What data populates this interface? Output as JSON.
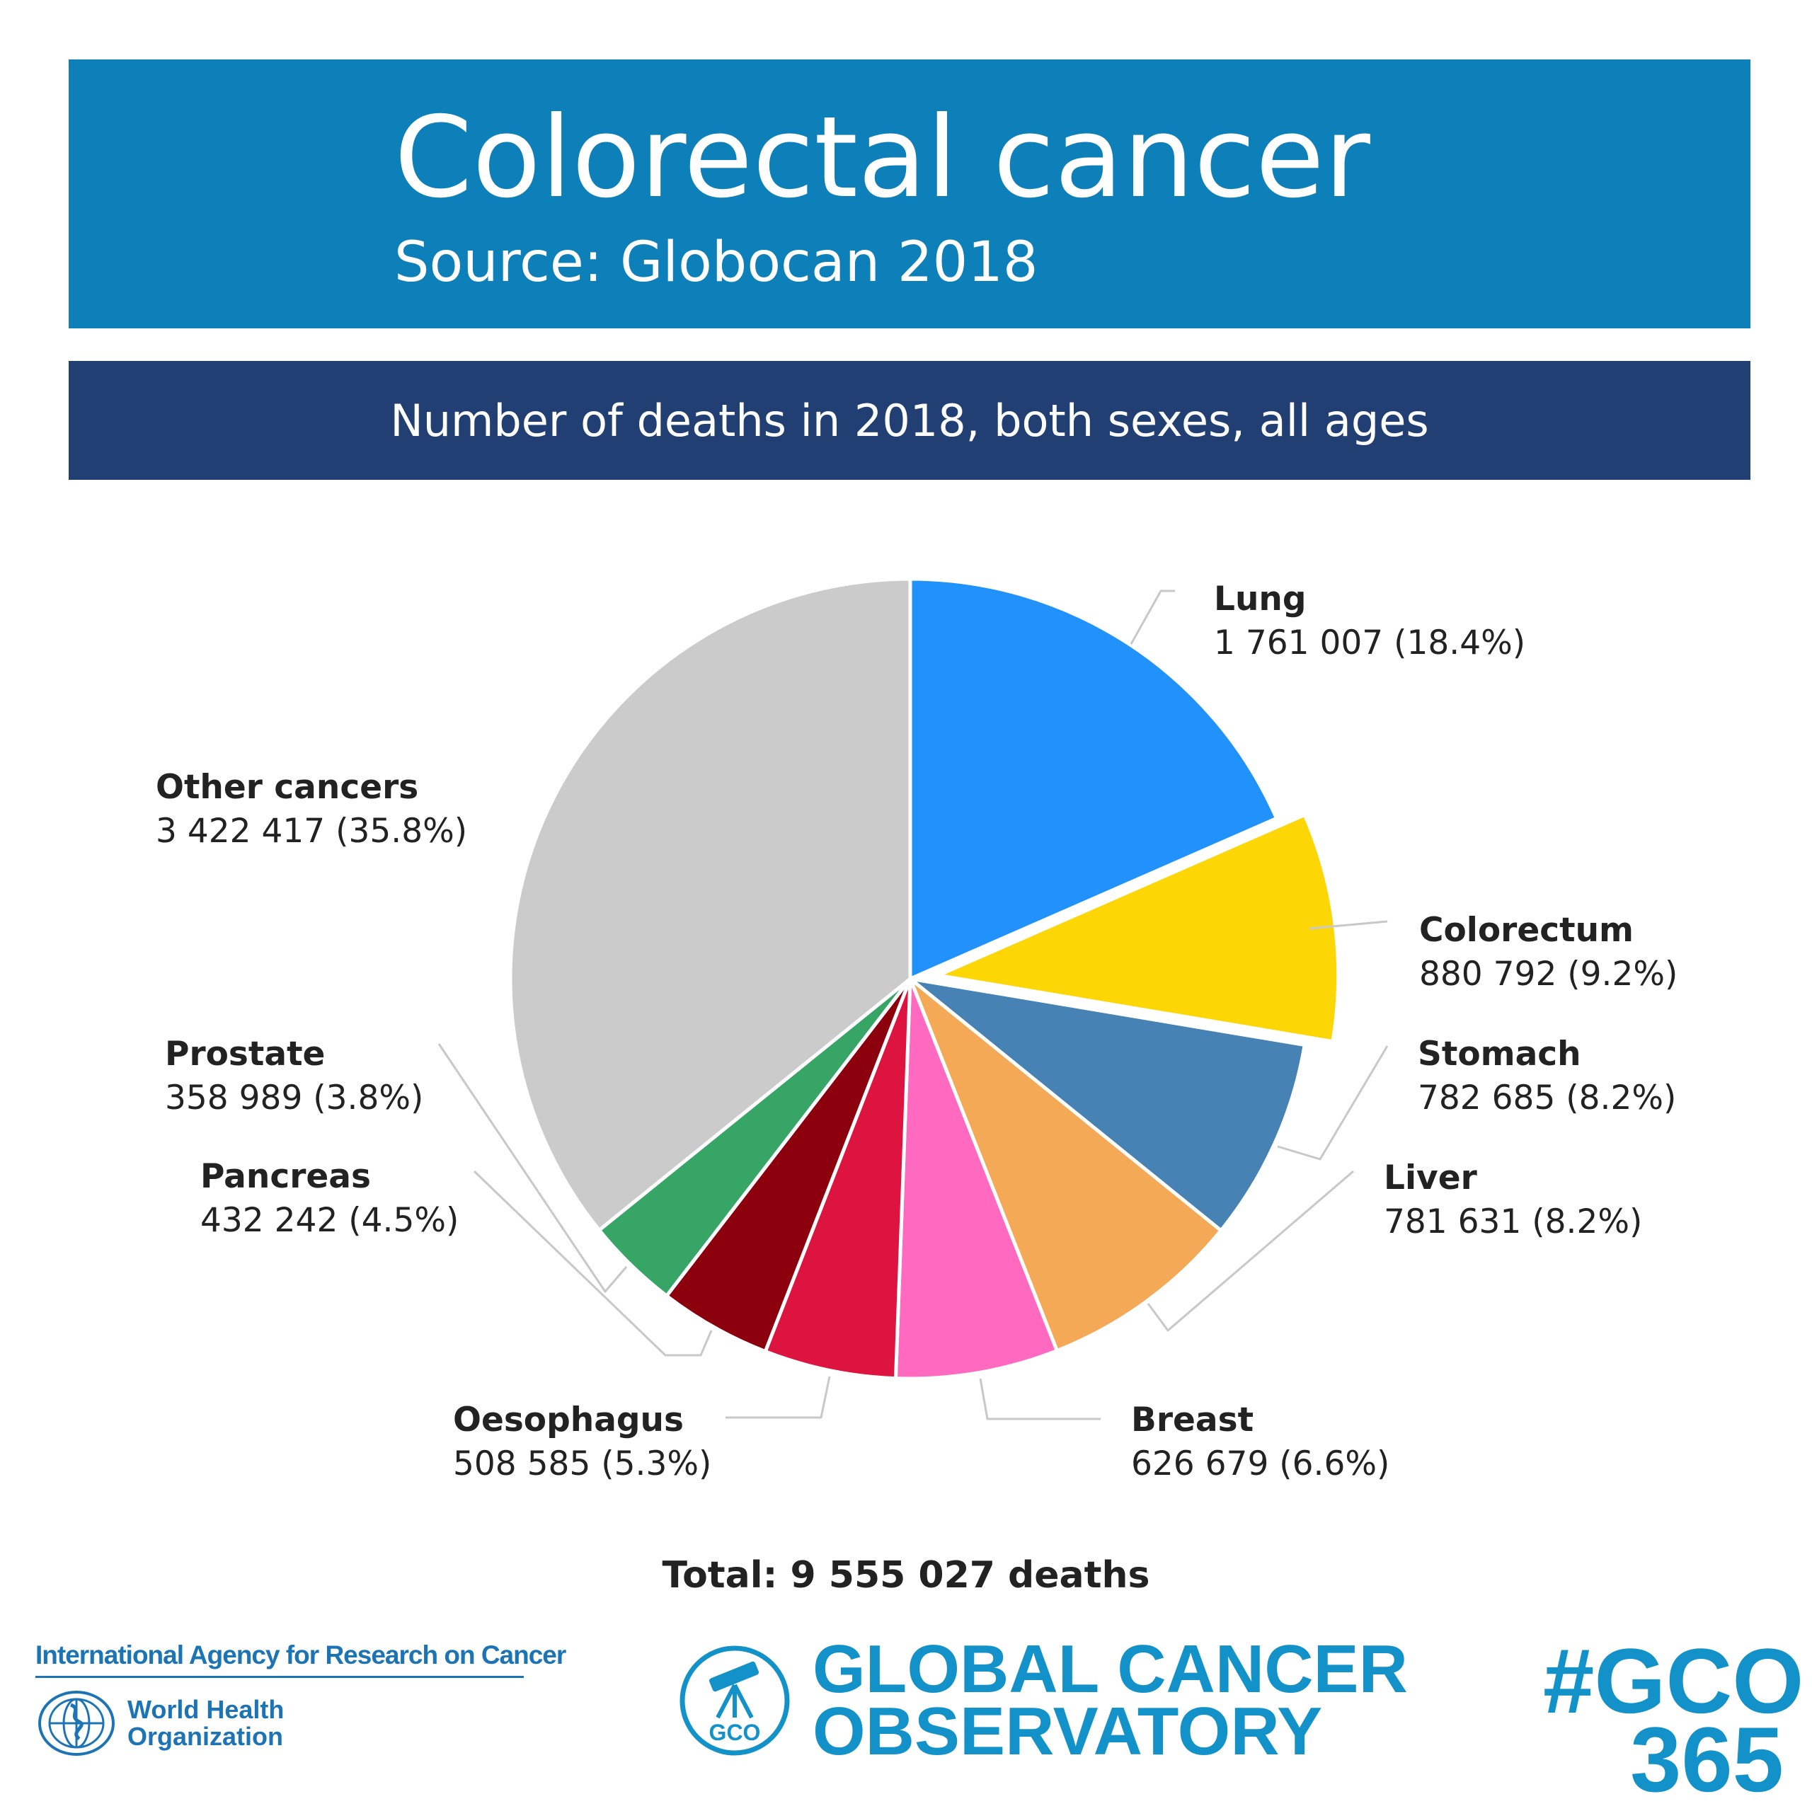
{
  "header": {
    "title": "Colorectal cancer",
    "source": "Source: Globocan 2018"
  },
  "subheader": {
    "text": "Number of deaths in 2018, both sexes, all ages"
  },
  "chart_data": {
    "type": "pie",
    "title": "Number of deaths in 2018, both sexes, all ages",
    "start_angle_deg": 0,
    "direction": "clockwise",
    "exploded_slice": "Colorectum",
    "slices": [
      {
        "name": "Lung",
        "value": 1761007,
        "value_label": "1 761 007 (18.4%)",
        "percent": 18.4,
        "color": "#2191fb"
      },
      {
        "name": "Colorectum",
        "value": 880792,
        "value_label": "880 792 (9.2%)",
        "percent": 9.2,
        "color": "#fdd605"
      },
      {
        "name": "Stomach",
        "value": 782685,
        "value_label": "782 685 (8.2%)",
        "percent": 8.2,
        "color": "#4682b4"
      },
      {
        "name": "Liver",
        "value": 781631,
        "value_label": "781 631 (8.2%)",
        "percent": 8.2,
        "color": "#f4a957"
      },
      {
        "name": "Breast",
        "value": 626679,
        "value_label": "626 679 (6.6%)",
        "percent": 6.6,
        "color": "#ff69bf"
      },
      {
        "name": "Oesophagus",
        "value": 508585,
        "value_label": "508 585 (5.3%)",
        "percent": 5.3,
        "color": "#dc143f"
      },
      {
        "name": "Pancreas",
        "value": 432242,
        "value_label": "432 242 (4.5%)",
        "percent": 4.5,
        "color": "#8b000c"
      },
      {
        "name": "Prostate",
        "value": 358989,
        "value_label": "358 989 (3.8%)",
        "percent": 3.8,
        "color": "#36a566"
      },
      {
        "name": "Other cancers",
        "value": 3422417,
        "value_label": "3 422 417 (35.8%)",
        "percent": 35.8,
        "color": "#cbcbcb"
      }
    ],
    "total_label": "Total: 9 555 027 deaths"
  },
  "footer": {
    "iarc": "International Agency for Research on Cancer",
    "who_line1": "World Health",
    "who_line2": "Organization",
    "gco_badge": "GCO",
    "gco_line1": "GLOBAL CANCER",
    "gco_line2": "OBSERVATORY",
    "hashtag_line1": "#GCO",
    "hashtag_line2": "365"
  },
  "icons": {
    "who_emblem": "who-emblem-icon",
    "gco_logo": "telescope-icon"
  }
}
